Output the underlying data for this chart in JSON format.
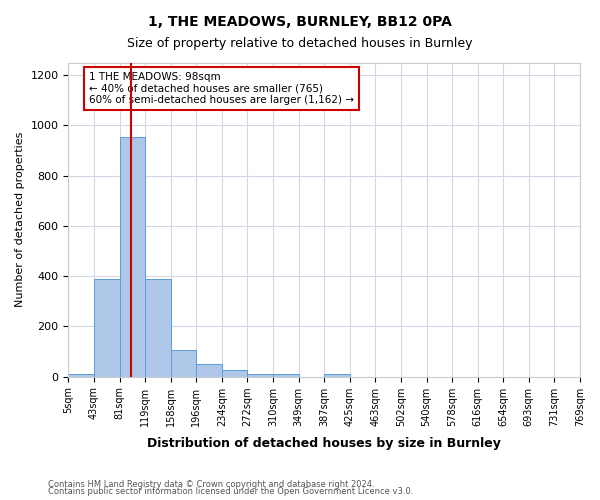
{
  "title1": "1, THE MEADOWS, BURNLEY, BB12 0PA",
  "title2": "Size of property relative to detached houses in Burnley",
  "xlabel": "Distribution of detached houses by size in Burnley",
  "ylabel": "Number of detached properties",
  "bin_labels": [
    "5sqm",
    "43sqm",
    "81sqm",
    "119sqm",
    "158sqm",
    "196sqm",
    "234sqm",
    "272sqm",
    "310sqm",
    "349sqm",
    "387sqm",
    "425sqm",
    "463sqm",
    "502sqm",
    "540sqm",
    "578sqm",
    "616sqm",
    "654sqm",
    "693sqm",
    "731sqm",
    "769sqm"
  ],
  "bar_values": [
    10,
    390,
    955,
    390,
    105,
    50,
    25,
    10,
    10,
    0,
    10,
    0,
    0,
    0,
    0,
    0,
    0,
    0,
    0,
    0
  ],
  "bar_color": "#aec6e8",
  "bar_edge_color": "#5a9fd4",
  "annotation_text": "1 THE MEADOWS: 98sqm\n← 40% of detached houses are smaller (765)\n60% of semi-detached houses are larger (1,162) →",
  "annotation_box_color": "#ffffff",
  "annotation_border_color": "#cc0000",
  "ylim": [
    0,
    1250
  ],
  "yticks": [
    0,
    200,
    400,
    600,
    800,
    1000,
    1200
  ],
  "footer1": "Contains HM Land Registry data © Crown copyright and database right 2024.",
  "footer2": "Contains public sector information licensed under the Open Government Licence v3.0.",
  "background_color": "#ffffff",
  "grid_color": "#d0d8e8"
}
